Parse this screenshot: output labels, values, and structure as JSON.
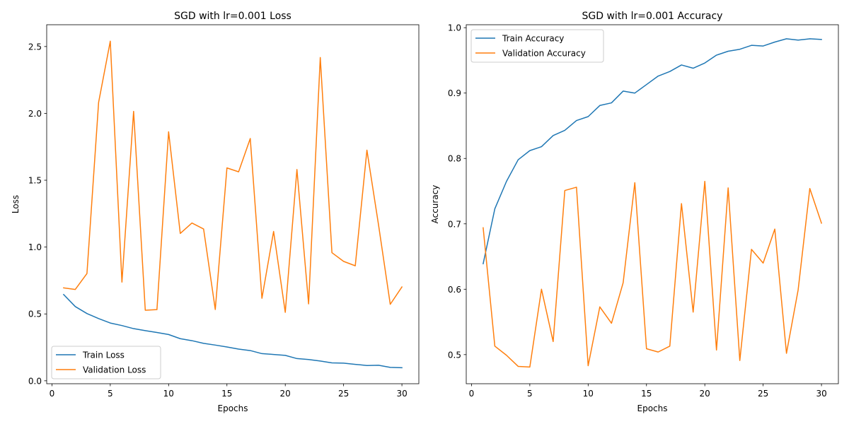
{
  "chart_data": [
    {
      "type": "line",
      "title": "SGD with lr=0.001 Loss",
      "xlabel": "Epochs",
      "ylabel": "Loss",
      "xlim": [
        -0.45,
        31.45
      ],
      "ylim": [
        -0.022,
        2.663
      ],
      "xticks": [
        0,
        5,
        10,
        15,
        20,
        25,
        30
      ],
      "xtick_labels": [
        "0",
        "5",
        "10",
        "15",
        "20",
        "25",
        "30"
      ],
      "yticks": [
        0.0,
        0.5,
        1.0,
        1.5,
        2.0,
        2.5
      ],
      "ytick_labels": [
        "0.0",
        "0.5",
        "1.0",
        "1.5",
        "2.0",
        "2.5"
      ],
      "grid": false,
      "legend_position": "lower-left",
      "x": [
        1,
        2,
        3,
        4,
        5,
        6,
        7,
        8,
        9,
        10,
        11,
        12,
        13,
        14,
        15,
        16,
        17,
        18,
        19,
        20,
        21,
        22,
        23,
        24,
        25,
        26,
        27,
        28,
        29,
        30
      ],
      "series": [
        {
          "name": "Train Loss",
          "color": "#1f77b4",
          "values": [
            0.645,
            0.555,
            0.503,
            0.465,
            0.432,
            0.413,
            0.39,
            0.375,
            0.361,
            0.346,
            0.315,
            0.3,
            0.28,
            0.267,
            0.253,
            0.237,
            0.226,
            0.203,
            0.197,
            0.19,
            0.166,
            0.159,
            0.148,
            0.134,
            0.132,
            0.123,
            0.114,
            0.116,
            0.1,
            0.098
          ]
        },
        {
          "name": "Validation Loss",
          "color": "#ff7f0e",
          "values": [
            0.695,
            0.683,
            0.802,
            2.082,
            2.54,
            0.738,
            2.015,
            0.528,
            0.532,
            1.862,
            1.102,
            1.18,
            1.135,
            0.533,
            1.592,
            1.563,
            1.812,
            0.617,
            1.117,
            0.512,
            1.58,
            0.575,
            2.418,
            0.958,
            0.893,
            0.86,
            1.725,
            1.163,
            0.572,
            0.702
          ]
        }
      ]
    },
    {
      "type": "line",
      "title": "SGD with lr=0.001 Accuracy",
      "xlabel": "Epochs",
      "ylabel": "Accuracy",
      "xlim": [
        -0.45,
        31.45
      ],
      "ylim": [
        0.4555,
        1.0045
      ],
      "xticks": [
        0,
        5,
        10,
        15,
        20,
        25,
        30
      ],
      "xtick_labels": [
        "0",
        "5",
        "10",
        "15",
        "20",
        "25",
        "30"
      ],
      "yticks": [
        0.5,
        0.6,
        0.7,
        0.8,
        0.9,
        1.0
      ],
      "ytick_labels": [
        "0.5",
        "0.6",
        "0.7",
        "0.8",
        "0.9",
        "1.0"
      ],
      "grid": false,
      "legend_position": "upper-left",
      "x": [
        1,
        2,
        3,
        4,
        5,
        6,
        7,
        8,
        9,
        10,
        11,
        12,
        13,
        14,
        15,
        16,
        17,
        18,
        19,
        20,
        21,
        22,
        23,
        24,
        25,
        26,
        27,
        28,
        29,
        30
      ],
      "series": [
        {
          "name": "Train Accuracy",
          "color": "#1f77b4",
          "values": [
            0.639,
            0.723,
            0.765,
            0.798,
            0.812,
            0.818,
            0.835,
            0.843,
            0.858,
            0.864,
            0.881,
            0.885,
            0.903,
            0.9,
            0.913,
            0.926,
            0.933,
            0.943,
            0.938,
            0.946,
            0.958,
            0.964,
            0.967,
            0.973,
            0.972,
            0.978,
            0.983,
            0.981,
            0.983,
            0.982
          ]
        },
        {
          "name": "Validation Accuracy",
          "color": "#ff7f0e",
          "values": [
            0.694,
            0.513,
            0.499,
            0.482,
            0.481,
            0.6,
            0.52,
            0.751,
            0.756,
            0.483,
            0.573,
            0.548,
            0.61,
            0.763,
            0.509,
            0.504,
            0.513,
            0.731,
            0.565,
            0.765,
            0.507,
            0.755,
            0.491,
            0.661,
            0.64,
            0.692,
            0.502,
            0.599,
            0.754,
            0.701
          ]
        }
      ]
    }
  ]
}
